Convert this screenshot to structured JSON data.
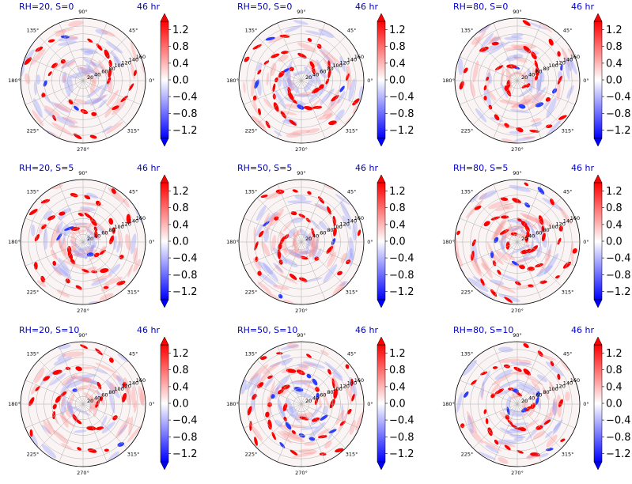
{
  "colors": {
    "positive": "#ff0000",
    "negative": "#0000ff",
    "neutral": "#ffffff",
    "title": "#0000cc",
    "grid": "#b0b0b0"
  },
  "chart_data": [
    {
      "type": "polar-heatmap",
      "title_left": "RH=20, S=0",
      "title_right": "46 hr",
      "theta_labels": [
        "0°",
        "45°",
        "90°",
        "135°",
        "180°",
        "225°",
        "270°",
        "315°"
      ],
      "r_labels": [
        "20",
        "40",
        "60",
        "80",
        "100",
        "120",
        "140",
        "160"
      ],
      "colorbar": {
        "ticks": [
          "1.2",
          "0.8",
          "0.4",
          "0.0",
          "−0.4",
          "−0.8",
          "−1.2"
        ],
        "range": [
          -1.4,
          1.4
        ],
        "extend": "both"
      }
    },
    {
      "type": "polar-heatmap",
      "title_left": "RH=50, S=0",
      "title_right": "46 hr",
      "theta_labels": [
        "0°",
        "45°",
        "90°",
        "135°",
        "180°",
        "225°",
        "270°",
        "315°"
      ],
      "r_labels": [
        "20",
        "40",
        "60",
        "80",
        "100",
        "120",
        "140",
        "160"
      ],
      "colorbar": {
        "ticks": [
          "1.2",
          "0.8",
          "0.4",
          "0.0",
          "−0.4",
          "−0.8",
          "−1.2"
        ],
        "range": [
          -1.4,
          1.4
        ],
        "extend": "both"
      }
    },
    {
      "type": "polar-heatmap",
      "title_left": "RH=80, S=0",
      "title_right": "46 hr",
      "theta_labels": [
        "0°",
        "45°",
        "90°",
        "135°",
        "180°",
        "225°",
        "270°",
        "315°"
      ],
      "r_labels": [
        "20",
        "40",
        "60",
        "80",
        "100",
        "120",
        "140",
        "160"
      ],
      "colorbar": {
        "ticks": [
          "1.2",
          "0.8",
          "0.4",
          "0.0",
          "−0.4",
          "−0.8",
          "−1.2"
        ],
        "range": [
          -1.4,
          1.4
        ],
        "extend": "both"
      }
    },
    {
      "type": "polar-heatmap",
      "title_left": "RH=20, S=5",
      "title_right": "46 hr",
      "theta_labels": [
        "0°",
        "45°",
        "90°",
        "135°",
        "180°",
        "225°",
        "270°",
        "315°"
      ],
      "r_labels": [
        "20",
        "40",
        "60",
        "80",
        "100",
        "120",
        "140",
        "160"
      ],
      "colorbar": {
        "ticks": [
          "1.2",
          "0.8",
          "0.4",
          "0.0",
          "−0.4",
          "−0.8",
          "−1.2"
        ],
        "range": [
          -1.4,
          1.4
        ],
        "extend": "both"
      }
    },
    {
      "type": "polar-heatmap",
      "title_left": "RH=50, S=5",
      "title_right": "46 hr",
      "theta_labels": [
        "0°",
        "45°",
        "90°",
        "135°",
        "180°",
        "225°",
        "270°",
        "315°"
      ],
      "r_labels": [
        "20",
        "40",
        "60",
        "80",
        "100",
        "120",
        "140",
        "160"
      ],
      "colorbar": {
        "ticks": [
          "1.2",
          "0.8",
          "0.4",
          "0.0",
          "−0.4",
          "−0.8",
          "−1.2"
        ],
        "range": [
          -1.4,
          1.4
        ],
        "extend": "both"
      }
    },
    {
      "type": "polar-heatmap",
      "title_left": "RH=80, S=5",
      "title_right": "46 hr",
      "theta_labels": [
        "0°",
        "45°",
        "90°",
        "135°",
        "180°",
        "225°",
        "270°",
        "315°"
      ],
      "r_labels": [
        "20",
        "40",
        "60",
        "80",
        "100",
        "120",
        "140",
        "160"
      ],
      "colorbar": {
        "ticks": [
          "1.2",
          "0.8",
          "0.4",
          "0.0",
          "−0.4",
          "−0.8",
          "−1.2"
        ],
        "range": [
          -1.4,
          1.4
        ],
        "extend": "both"
      }
    },
    {
      "type": "polar-heatmap",
      "title_left": "RH=20, S=10",
      "title_right": "46 hr",
      "theta_labels": [
        "0°",
        "45°",
        "90°",
        "135°",
        "180°",
        "225°",
        "270°",
        "315°"
      ],
      "r_labels": [
        "20",
        "40",
        "60",
        "80",
        "100",
        "120",
        "140",
        "160"
      ],
      "colorbar": {
        "ticks": [
          "1.2",
          "0.8",
          "0.4",
          "0.0",
          "−0.4",
          "−0.8",
          "−1.2"
        ],
        "range": [
          -1.4,
          1.4
        ],
        "extend": "both"
      }
    },
    {
      "type": "polar-heatmap",
      "title_left": "RH=50, S=10",
      "title_right": "46 hr",
      "theta_labels": [
        "0°",
        "45°",
        "90°",
        "135°",
        "180°",
        "225°",
        "270°",
        "315°"
      ],
      "r_labels": [
        "20",
        "40",
        "60",
        "80",
        "100",
        "120",
        "140",
        "160"
      ],
      "colorbar": {
        "ticks": [
          "1.2",
          "0.8",
          "0.4",
          "0.0",
          "−0.4",
          "−0.8",
          "−1.2"
        ],
        "range": [
          -1.4,
          1.4
        ],
        "extend": "both"
      }
    },
    {
      "type": "polar-heatmap",
      "title_left": "RH=80, S=10",
      "title_right": "46 hr",
      "theta_labels": [
        "0°",
        "45°",
        "90°",
        "135°",
        "180°",
        "225°",
        "270°",
        "315°"
      ],
      "r_labels": [
        "20",
        "40",
        "60",
        "80",
        "100",
        "120",
        "140",
        "160"
      ],
      "colorbar": {
        "ticks": [
          "1.2",
          "0.8",
          "0.4",
          "0.0",
          "−0.4",
          "−0.8",
          "−1.2"
        ],
        "range": [
          -1.4,
          1.4
        ],
        "extend": "both"
      }
    }
  ]
}
